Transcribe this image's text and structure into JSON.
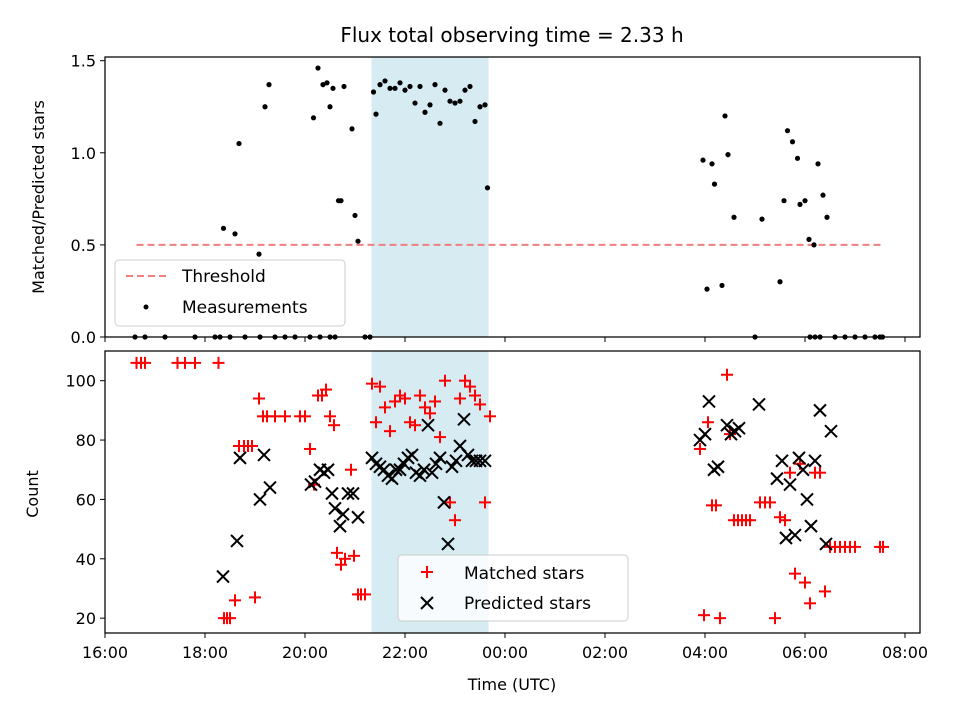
{
  "chart_data": [
    {
      "type": "scatter",
      "title": "Flux total observing time = 2.33 h",
      "ylabel": "Matched/Predicted stars",
      "xlabel": "",
      "xlim": [
        16.0,
        32.3
      ],
      "ylim": [
        0.0,
        1.52
      ],
      "yticks": [
        0.0,
        0.5,
        1.0,
        1.5
      ],
      "ytick_labels": [
        "0.0",
        "0.5",
        "1.0",
        "1.5"
      ],
      "highlight_span": [
        21.33,
        23.67
      ],
      "highlight_color": "#add8e6",
      "legend_position": "lower left",
      "series": [
        {
          "name": "Threshold",
          "kind": "line",
          "style": "dashed",
          "color": "#f08080",
          "x": [
            16.63,
            31.57
          ],
          "y": [
            0.5,
            0.5
          ]
        },
        {
          "name": "Measurements",
          "kind": "points",
          "color": "#000000",
          "x": [
            16.6,
            16.8,
            17.2,
            17.8,
            18.2,
            18.3,
            18.5,
            18.8,
            19.1,
            19.4,
            19.6,
            19.8,
            20.1,
            20.3,
            20.5,
            20.6,
            18.37,
            18.6,
            18.68,
            19.08,
            19.2,
            19.28,
            20.17,
            20.26,
            20.36,
            20.44,
            20.5,
            20.56,
            20.67,
            20.72,
            20.78,
            20.94,
            21.0,
            21.06,
            21.2,
            21.3,
            21.37,
            21.42,
            21.5,
            21.6,
            21.7,
            21.8,
            21.9,
            22.0,
            22.1,
            22.2,
            22.3,
            22.4,
            22.5,
            22.6,
            22.7,
            22.8,
            22.9,
            23.0,
            23.1,
            23.2,
            23.3,
            23.4,
            23.5,
            23.6,
            23.65,
            29.0,
            30.2,
            31.5,
            27.96,
            28.04,
            28.14,
            28.19,
            28.34,
            28.4,
            28.46,
            28.58,
            29.14,
            29.5,
            29.58,
            29.65,
            29.75,
            29.85,
            29.9,
            30.0,
            30.08,
            30.18,
            30.26,
            30.36,
            30.44,
            30.1,
            30.3,
            30.6,
            30.8,
            31.0,
            31.2,
            31.4,
            31.55
          ],
          "y": [
            0,
            0,
            0,
            0,
            0,
            0,
            0,
            0,
            0,
            0,
            0,
            0,
            0,
            0,
            0,
            0,
            0.59,
            0.56,
            1.05,
            0.45,
            1.25,
            1.37,
            1.19,
            1.46,
            1.37,
            1.38,
            1.25,
            1.35,
            0.74,
            0.74,
            1.36,
            1.13,
            0.66,
            0.52,
            0,
            0,
            1.33,
            1.21,
            1.37,
            1.39,
            1.35,
            1.35,
            1.38,
            1.34,
            1.36,
            1.27,
            1.36,
            1.22,
            1.26,
            1.37,
            1.16,
            1.34,
            1.28,
            1.27,
            1.28,
            1.34,
            1.36,
            1.17,
            1.25,
            1.26,
            0.81,
            0,
            0,
            0,
            0.96,
            0.26,
            0.94,
            0.83,
            0.28,
            1.2,
            0.99,
            0.65,
            0.64,
            0.3,
            0.74,
            1.12,
            1.06,
            0.97,
            0.72,
            0.74,
            0.53,
            0.5,
            0.94,
            0.77,
            0.65,
            0,
            0,
            0,
            0,
            0,
            0,
            0,
            0
          ]
        }
      ]
    },
    {
      "type": "scatter",
      "title": "",
      "xlabel": "Time (UTC)",
      "ylabel": "Count",
      "xlim": [
        16.0,
        32.3
      ],
      "ylim": [
        15,
        110
      ],
      "xticks": [
        16,
        18,
        20,
        22,
        24,
        26,
        28,
        30,
        32
      ],
      "xtick_labels": [
        "16:00",
        "18:00",
        "20:00",
        "22:00",
        "00:00",
        "02:00",
        "04:00",
        "06:00",
        "08:00"
      ],
      "yticks": [
        20,
        40,
        60,
        80,
        100
      ],
      "ytick_labels": [
        "20",
        "40",
        "60",
        "80",
        "100"
      ],
      "highlight_span": [
        21.33,
        23.67
      ],
      "highlight_color": "#add8e6",
      "legend_position": "lower center",
      "series": [
        {
          "name": "Matched stars",
          "marker": "plus",
          "color": "#ff0000",
          "x": [
            16.63,
            16.72,
            16.8,
            17.45,
            17.6,
            17.8,
            18.27,
            18.38,
            18.44,
            18.5,
            18.6,
            18.68,
            18.78,
            18.86,
            18.94,
            19.0,
            19.08,
            19.16,
            19.24,
            19.4,
            19.6,
            19.9,
            20.0,
            20.1,
            20.18,
            20.26,
            20.34,
            20.42,
            20.5,
            20.58,
            20.64,
            20.72,
            20.8,
            20.92,
            20.98,
            21.06,
            21.12,
            21.2,
            21.34,
            21.42,
            21.5,
            21.6,
            21.7,
            21.8,
            21.9,
            22.0,
            22.1,
            22.2,
            22.3,
            22.4,
            22.5,
            22.6,
            22.7,
            22.8,
            22.9,
            23.0,
            23.1,
            23.2,
            23.3,
            23.4,
            23.5,
            23.6,
            23.7,
            27.9,
            27.98,
            28.06,
            28.14,
            28.22,
            28.3,
            28.44,
            28.5,
            28.58,
            28.66,
            28.74,
            28.82,
            28.9,
            29.1,
            29.2,
            29.3,
            29.4,
            29.5,
            29.6,
            29.7,
            29.8,
            29.9,
            30.0,
            30.1,
            30.2,
            30.3,
            30.4,
            30.5,
            30.6,
            30.7,
            30.8,
            30.9,
            31.0,
            31.5,
            31.56
          ],
          "y": [
            106,
            106,
            106,
            106,
            106,
            106,
            106,
            20,
            20,
            20,
            26,
            78,
            78,
            78,
            78,
            27,
            94,
            88,
            88,
            88,
            88,
            88,
            88,
            77,
            65,
            95,
            95,
            97,
            88,
            85,
            42,
            38,
            40,
            70,
            41,
            28,
            28,
            28,
            99,
            86,
            98,
            91,
            83,
            93,
            95,
            94,
            86,
            85,
            95,
            91,
            89,
            93,
            81,
            100,
            59,
            53,
            94,
            100,
            98,
            95,
            92,
            59,
            88,
            77,
            21,
            86,
            58,
            58,
            20,
            102,
            82,
            53,
            53,
            53,
            53,
            53,
            59,
            59,
            59,
            20,
            54,
            53,
            69,
            35,
            72,
            32,
            25,
            69,
            69,
            29,
            44,
            44,
            44,
            44,
            44,
            44,
            44,
            44
          ]
        },
        {
          "name": "Predicted stars",
          "marker": "x",
          "color": "#000000",
          "x": [
            18.36,
            18.64,
            18.7,
            19.1,
            19.18,
            19.3,
            20.12,
            20.2,
            20.3,
            20.38,
            20.46,
            20.54,
            20.6,
            20.7,
            20.76,
            20.86,
            20.96,
            21.06,
            21.34,
            21.42,
            21.5,
            21.58,
            21.66,
            21.74,
            21.82,
            21.9,
            21.98,
            22.06,
            22.14,
            22.22,
            22.3,
            22.38,
            22.46,
            22.54,
            22.62,
            22.7,
            22.78,
            22.86,
            22.94,
            23.02,
            23.1,
            23.18,
            23.26,
            23.34,
            23.42,
            23.5,
            23.6,
            27.9,
            28.0,
            28.08,
            28.18,
            28.26,
            28.44,
            28.52,
            28.6,
            28.68,
            29.08,
            29.44,
            29.54,
            29.62,
            29.7,
            29.8,
            29.88,
            29.96,
            30.04,
            30.12,
            30.2,
            30.3,
            30.42,
            30.52
          ],
          "y": [
            34,
            46,
            74,
            60,
            75,
            64,
            65,
            66,
            70,
            69,
            70,
            62,
            57,
            51,
            55,
            62,
            62,
            54,
            74,
            72,
            71,
            70,
            68,
            67,
            70,
            70,
            72,
            74,
            75,
            69,
            68,
            70,
            85,
            69,
            72,
            74,
            59,
            45,
            71,
            73,
            78,
            87,
            75,
            73,
            73,
            73,
            73,
            80,
            82,
            93,
            70,
            71,
            85,
            82,
            83,
            84,
            92,
            67,
            73,
            47,
            65,
            48,
            74,
            70,
            60,
            51,
            73,
            90,
            45,
            83
          ]
        }
      ]
    }
  ]
}
